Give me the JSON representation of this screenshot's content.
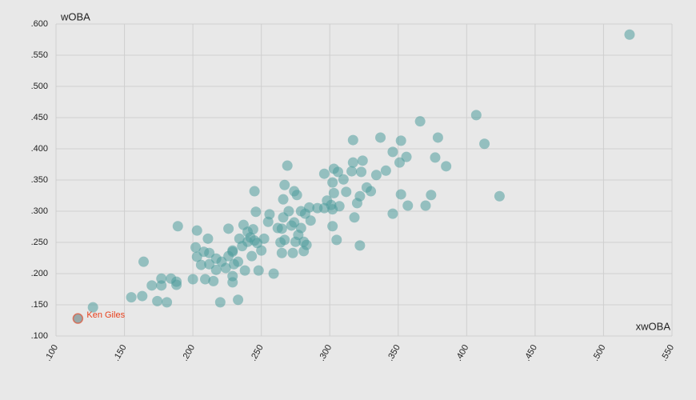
{
  "chart_data": {
    "type": "scatter",
    "ylabel": "wOBA",
    "xlabel": "xwOBA",
    "color": "#4e9c9c",
    "highlight_color": "#e8401c",
    "grid": true,
    "xlim": [
      0.1,
      0.55
    ],
    "ylim": [
      0.1,
      0.6
    ],
    "xticks": [
      {
        "value": 0.1,
        "label": ".100"
      },
      {
        "value": 0.15,
        "label": ".150"
      },
      {
        "value": 0.2,
        "label": ".200"
      },
      {
        "value": 0.25,
        "label": ".250"
      },
      {
        "value": 0.3,
        "label": ".300"
      },
      {
        "value": 0.35,
        "label": ".350"
      },
      {
        "value": 0.4,
        "label": ".400"
      },
      {
        "value": 0.45,
        "label": ".450"
      },
      {
        "value": 0.5,
        "label": ".500"
      },
      {
        "value": 0.55,
        "label": ".550"
      }
    ],
    "yticks": [
      {
        "value": 0.1,
        "label": ".100"
      },
      {
        "value": 0.15,
        "label": ".150"
      },
      {
        "value": 0.2,
        "label": ".200"
      },
      {
        "value": 0.25,
        "label": ".250"
      },
      {
        "value": 0.3,
        "label": ".300"
      },
      {
        "value": 0.35,
        "label": ".350"
      },
      {
        "value": 0.4,
        "label": ".400"
      },
      {
        "value": 0.45,
        "label": ".450"
      },
      {
        "value": 0.5,
        "label": ".500"
      },
      {
        "value": 0.55,
        "label": ".550"
      },
      {
        "value": 0.6,
        "label": ".600"
      }
    ],
    "x": [
      0.127,
      0.155,
      0.163,
      0.164,
      0.17,
      0.174,
      0.177,
      0.177,
      0.181,
      0.184,
      0.188,
      0.188,
      0.189,
      0.2,
      0.202,
      0.203,
      0.203,
      0.206,
      0.208,
      0.209,
      0.211,
      0.212,
      0.212,
      0.215,
      0.217,
      0.217,
      0.22,
      0.221,
      0.224,
      0.226,
      0.226,
      0.229,
      0.229,
      0.229,
      0.229,
      0.23,
      0.233,
      0.233,
      0.234,
      0.236,
      0.237,
      0.238,
      0.24,
      0.24,
      0.243,
      0.242,
      0.244,
      0.245,
      0.245,
      0.246,
      0.247,
      0.248,
      0.25,
      0.252,
      0.255,
      0.256,
      0.259,
      0.262,
      0.264,
      0.265,
      0.265,
      0.266,
      0.266,
      0.267,
      0.267,
      0.269,
      0.27,
      0.272,
      0.273,
      0.274,
      0.274,
      0.275,
      0.276,
      0.277,
      0.279,
      0.279,
      0.281,
      0.281,
      0.282,
      0.283,
      0.285,
      0.286,
      0.291,
      0.296,
      0.296,
      0.298,
      0.301,
      0.302,
      0.302,
      0.302,
      0.303,
      0.303,
      0.305,
      0.306,
      0.307,
      0.31,
      0.312,
      0.316,
      0.317,
      0.317,
      0.318,
      0.32,
      0.322,
      0.322,
      0.323,
      0.324,
      0.327,
      0.33,
      0.334,
      0.337,
      0.341,
      0.346,
      0.346,
      0.351,
      0.352,
      0.352,
      0.356,
      0.357,
      0.366,
      0.37,
      0.374,
      0.377,
      0.379,
      0.385,
      0.407,
      0.413,
      0.424,
      0.519
    ],
    "values": [
      0.146,
      0.162,
      0.164,
      0.219,
      0.181,
      0.156,
      0.192,
      0.181,
      0.154,
      0.192,
      0.187,
      0.182,
      0.276,
      0.191,
      0.242,
      0.269,
      0.227,
      0.214,
      0.235,
      0.191,
      0.256,
      0.233,
      0.215,
      0.188,
      0.224,
      0.206,
      0.154,
      0.219,
      0.209,
      0.272,
      0.228,
      0.237,
      0.196,
      0.186,
      0.235,
      0.215,
      0.158,
      0.219,
      0.256,
      0.244,
      0.278,
      0.205,
      0.251,
      0.267,
      0.228,
      0.258,
      0.271,
      0.332,
      0.253,
      0.299,
      0.249,
      0.205,
      0.237,
      0.256,
      0.283,
      0.295,
      0.2,
      0.273,
      0.25,
      0.272,
      0.233,
      0.319,
      0.29,
      0.342,
      0.254,
      0.373,
      0.3,
      0.277,
      0.233,
      0.282,
      0.332,
      0.251,
      0.326,
      0.262,
      0.3,
      0.273,
      0.251,
      0.236,
      0.296,
      0.246,
      0.306,
      0.285,
      0.305,
      0.36,
      0.305,
      0.317,
      0.31,
      0.346,
      0.303,
      0.276,
      0.329,
      0.368,
      0.254,
      0.363,
      0.308,
      0.351,
      0.331,
      0.364,
      0.414,
      0.378,
      0.29,
      0.313,
      0.324,
      0.245,
      0.363,
      0.381,
      0.338,
      0.332,
      0.358,
      0.418,
      0.365,
      0.395,
      0.296,
      0.378,
      0.413,
      0.327,
      0.387,
      0.309,
      0.444,
      0.309,
      0.326,
      0.386,
      0.418,
      0.372,
      0.454,
      0.408,
      0.324,
      0.583
    ],
    "annotations": [
      {
        "text": "Ken Giles",
        "x": 0.116,
        "y": 0.128
      }
    ]
  }
}
